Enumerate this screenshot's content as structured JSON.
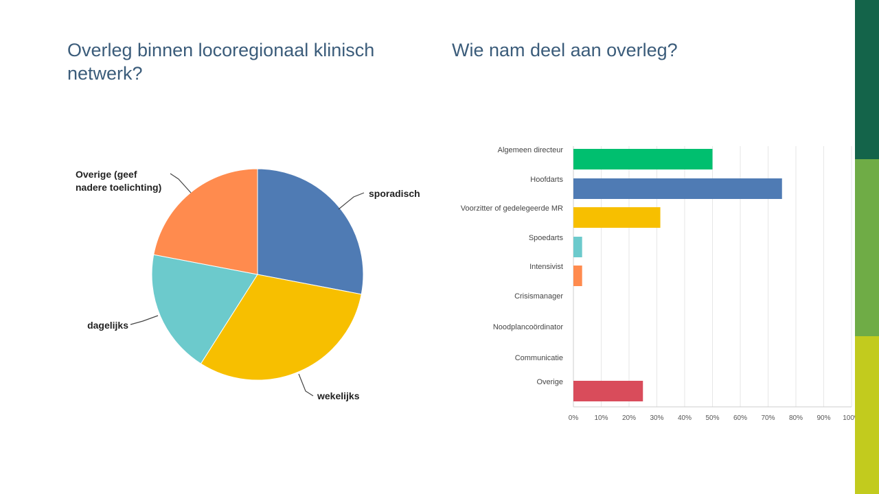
{
  "slide": {
    "title_left": "Overleg binnen locoregionaal klinisch netwerk?",
    "title_right": "Wie nam deel aan overleg?",
    "title_color": "#3b5c7a",
    "band_colors": [
      "#14644a",
      "#6fac46",
      "#c2cb1e"
    ]
  },
  "chart_data": [
    {
      "type": "pie",
      "title": "",
      "slices": [
        {
          "label": "sporadisch",
          "value": 28,
          "color": "#4f7bb4"
        },
        {
          "label": "wekelijks",
          "value": 31,
          "color": "#f7bf00"
        },
        {
          "label": "dagelijks",
          "value": 19,
          "color": "#6ccacc"
        },
        {
          "label": "Overige (geef nadere toelichting)",
          "value": 22,
          "color": "#ff8b4e"
        }
      ]
    },
    {
      "type": "bar",
      "orientation": "horizontal",
      "title": "",
      "categories": [
        "Algemeen directeur",
        "Hoofdarts",
        "Voorzitter of gedelegeerde MR",
        "Spoedarts",
        "Intensivist",
        "Crisismanager",
        "Noodplancoördinator",
        "Communicatie",
        "Overige"
      ],
      "values": [
        50,
        75,
        31.25,
        3.13,
        3.13,
        0,
        0,
        0,
        25
      ],
      "colors": [
        "#00bf6f",
        "#4f7bb4",
        "#f7bf00",
        "#6ccacc",
        "#ff8b4e",
        "#a0a0a0",
        "#a0a0a0",
        "#a0a0a0",
        "#d94c5b"
      ],
      "xlim": [
        0,
        100
      ],
      "xticks": [
        "0%",
        "10%",
        "20%",
        "30%",
        "40%",
        "50%",
        "60%",
        "70%",
        "80%",
        "90%",
        "100%"
      ],
      "grid": true
    }
  ]
}
